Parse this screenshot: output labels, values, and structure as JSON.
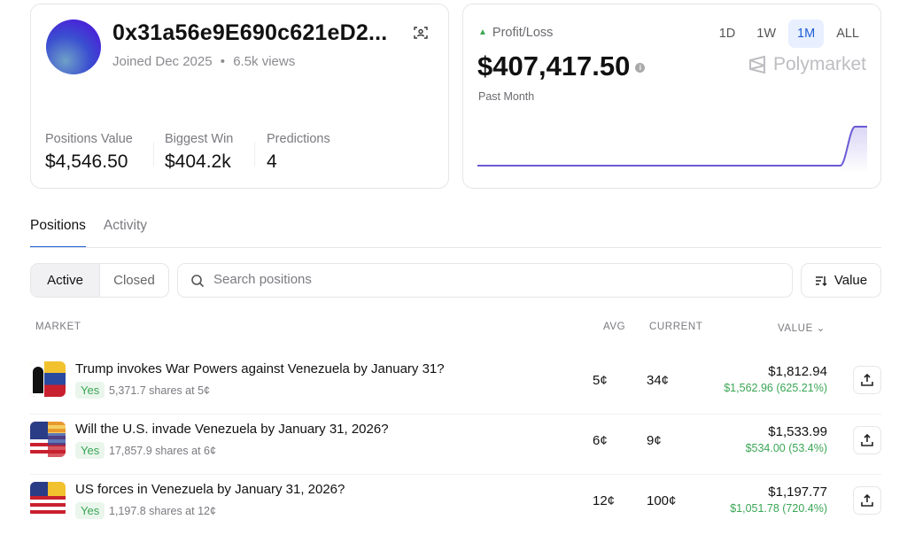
{
  "profile": {
    "address": "0x31a56e9E690c621eD2...",
    "joined": "Joined Dec 2025",
    "views": "6.5k views",
    "separator": "•",
    "stats": [
      {
        "label": "Positions Value",
        "value": "$4,546.50"
      },
      {
        "label": "Biggest Win",
        "value": "$404.2k"
      },
      {
        "label": "Predictions",
        "value": "4"
      }
    ]
  },
  "pnl": {
    "label": "Profit/Loss",
    "amount": "$407,417.50",
    "period": "Past Month",
    "ranges": [
      "1D",
      "1W",
      "1M",
      "ALL"
    ],
    "selected_range": "1M",
    "brand": "Polymarket",
    "line_color": "#6b5bd6"
  },
  "tabs": [
    "Positions",
    "Activity"
  ],
  "filters": {
    "segments": [
      "Active",
      "Closed"
    ],
    "search_placeholder": "Search positions",
    "sort_label": "Value"
  },
  "table": {
    "headers": {
      "market": "MARKET",
      "avg": "AVG",
      "current": "CURRENT",
      "value": "VALUE"
    },
    "rows": [
      {
        "title": "Trump invokes War Powers against Venezuela by January 31?",
        "outcome": "Yes",
        "shares": "5,371.7 shares at 5¢",
        "avg": "5¢",
        "current": "34¢",
        "value": "$1,812.94",
        "pnl": "$1,562.96 (625.21%)"
      },
      {
        "title": "Will the U.S. invade Venezuela by January 31, 2026?",
        "outcome": "Yes",
        "shares": "17,857.9 shares at 6¢",
        "avg": "6¢",
        "current": "9¢",
        "value": "$1,533.99",
        "pnl": "$534.00 (53.4%)"
      },
      {
        "title": "US forces in Venezuela by January 31, 2026?",
        "outcome": "Yes",
        "shares": "1,197.8 shares at 12¢",
        "avg": "12¢",
        "current": "100¢",
        "value": "$1,197.77",
        "pnl": "$1,051.78 (720.4%)"
      }
    ]
  },
  "colors": {
    "accent": "#1f5fd6",
    "positive": "#3aa655"
  }
}
